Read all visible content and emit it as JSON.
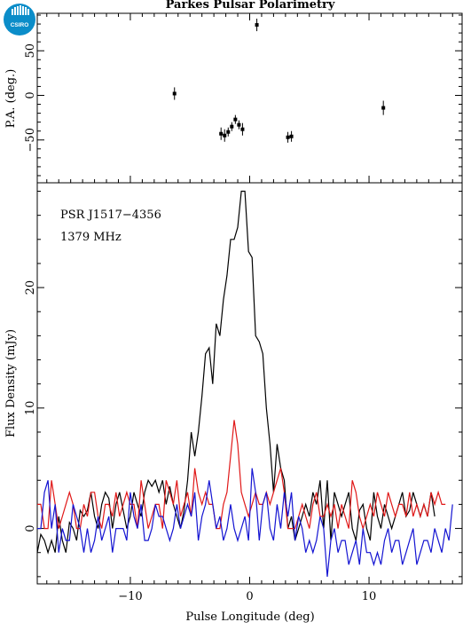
{
  "logo": {
    "text": "CSIRO",
    "color": "#0b8dc9"
  },
  "title": "Parkes Pulsar Polarimetry",
  "annotations": {
    "psr": "PSR J1517−4356",
    "freq": "1379 MHz"
  },
  "chart_data": [
    {
      "type": "scatter",
      "panel": "position-angle",
      "ylabel": "P.A. (deg.)",
      "xlim": [
        -17.8,
        17.8
      ],
      "ylim": [
        -98,
        92
      ],
      "yticks": [
        -50,
        0,
        50
      ],
      "ytick_labels": [
        "−50",
        "0",
        "50"
      ],
      "points": [
        {
          "x": -6.3,
          "y": 2,
          "err": 7
        },
        {
          "x": -2.4,
          "y": -43,
          "err": 7
        },
        {
          "x": -2.1,
          "y": -45,
          "err": 7
        },
        {
          "x": -1.8,
          "y": -41,
          "err": 5
        },
        {
          "x": -1.5,
          "y": -35,
          "err": 5
        },
        {
          "x": -1.2,
          "y": -27,
          "err": 5
        },
        {
          "x": -0.9,
          "y": -33,
          "err": 5
        },
        {
          "x": -0.6,
          "y": -38,
          "err": 7
        },
        {
          "x": 0.6,
          "y": 79,
          "err": 7
        },
        {
          "x": 3.2,
          "y": -47,
          "err": 6
        },
        {
          "x": 3.5,
          "y": -46,
          "err": 6
        },
        {
          "x": 11.2,
          "y": -14,
          "err": 8
        }
      ]
    },
    {
      "type": "line",
      "panel": "flux-density",
      "xlabel": "Pulse Longitude (deg)",
      "ylabel": "Flux Density (mJy)",
      "xlim": [
        -17.8,
        17.8
      ],
      "ylim": [
        -4.6,
        28.7
      ],
      "xticks": [
        -10,
        0,
        10
      ],
      "xtick_labels": [
        "−10",
        "0",
        "10"
      ],
      "yticks": [
        0,
        10,
        20
      ],
      "ytick_labels": [
        "0",
        "10",
        "20"
      ],
      "x_start": -17.8,
      "x_step": 0.3,
      "series": [
        {
          "color": "#000000",
          "values": [
            -2,
            -0.5,
            -1,
            -2,
            -1,
            -2,
            1,
            -1,
            -2,
            0.5,
            0,
            -1,
            1.5,
            1,
            1.5,
            3,
            1,
            0,
            2,
            3,
            2.5,
            0,
            2,
            3,
            1.5,
            0,
            1,
            3,
            2,
            1,
            3,
            4,
            3.5,
            4,
            3,
            4,
            2,
            3.5,
            2,
            1,
            0,
            1.5,
            4,
            8,
            6,
            8,
            11,
            14.5,
            15,
            12,
            17,
            16,
            19,
            21,
            24,
            24,
            25,
            28,
            28,
            23,
            22.5,
            16,
            15.5,
            14.5,
            10,
            7,
            3,
            7,
            5,
            4,
            0,
            1,
            -1,
            0,
            1,
            2,
            1,
            3,
            2,
            4,
            0,
            4,
            -1,
            3,
            2,
            1,
            2,
            3,
            0,
            -1,
            1.5,
            2,
            0,
            -1,
            3,
            1,
            0,
            2,
            1,
            0,
            1,
            2,
            3,
            1,
            1.5,
            3,
            2,
            1,
            2,
            1,
            3,
            1
          ]
        },
        {
          "color": "#e01818",
          "values": [
            2,
            2,
            0,
            0,
            4,
            2,
            0,
            1,
            2,
            3,
            2,
            0,
            0,
            2,
            1,
            3,
            3,
            1,
            0,
            2,
            2,
            1,
            3,
            1,
            2,
            3,
            2,
            2,
            0,
            4,
            2,
            0,
            1,
            2,
            2,
            0,
            4,
            3,
            2,
            4,
            1,
            2,
            3,
            1,
            5,
            3,
            2,
            3,
            2,
            2,
            0,
            0,
            2,
            3,
            6,
            9,
            7,
            3,
            2,
            1,
            2,
            3,
            2,
            2,
            3,
            2,
            3,
            4,
            5,
            3,
            0,
            0,
            0,
            1,
            2,
            1,
            0,
            2,
            3,
            1,
            1,
            2,
            1,
            2,
            0,
            2,
            1,
            0,
            4,
            3,
            1,
            0,
            1,
            2,
            1,
            3,
            2,
            1,
            3,
            2,
            1,
            2,
            2,
            1,
            3,
            1,
            2,
            1,
            2,
            1,
            3,
            2,
            3,
            2,
            2
          ]
        },
        {
          "color": "#1414d2",
          "values": [
            0,
            0,
            3,
            4,
            0,
            2,
            -2,
            0,
            -1,
            -1,
            2,
            1,
            0,
            -2,
            0,
            -2,
            -1,
            1,
            -1,
            0,
            1,
            -2,
            0,
            0,
            0,
            -1,
            3,
            1,
            0,
            2,
            -1,
            -1,
            0,
            2,
            1,
            1,
            0,
            -1,
            0,
            2,
            0,
            1,
            2,
            1,
            3,
            -1,
            1,
            2,
            4,
            2,
            0,
            1,
            -1,
            0,
            2,
            0,
            -1,
            0,
            1,
            -1,
            5,
            3,
            -1,
            2,
            3,
            0,
            -1,
            2,
            0,
            3,
            1,
            3,
            -1,
            1,
            0,
            -2,
            -1,
            -2,
            -1,
            1,
            0,
            -4,
            -1,
            0,
            -2,
            -1,
            -1,
            -3,
            -2,
            -1,
            -3,
            0,
            -2,
            -2,
            -3,
            -2,
            -3,
            -1,
            0,
            -2,
            -1,
            -1,
            -3,
            -2,
            -1,
            0,
            -3,
            -2,
            -1,
            -1,
            -2,
            0,
            -1,
            -2,
            0,
            -1,
            2
          ]
        }
      ]
    }
  ]
}
